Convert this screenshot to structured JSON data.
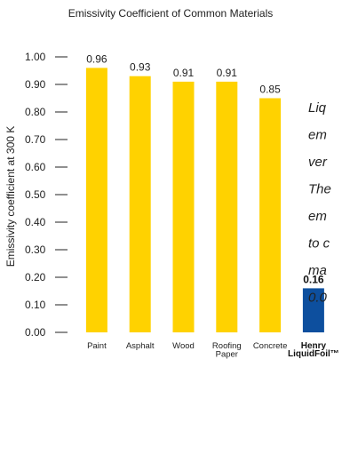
{
  "chart_data": {
    "type": "bar",
    "title": "Emissivity Coefficient of Common Materials",
    "ylabel": "Emissivity coefficient at 300 K",
    "xlabel": "",
    "ylim": [
      0,
      1.0
    ],
    "yticks": [
      "0.00",
      "0.10",
      "0.20",
      "0.30",
      "0.40",
      "0.50",
      "0.60",
      "0.70",
      "0.80",
      "0.90",
      "1.00"
    ],
    "categories": [
      [
        "Paint"
      ],
      [
        "Asphalt"
      ],
      [
        "Wood"
      ],
      [
        "Roofing",
        "Paper"
      ],
      [
        "Concrete"
      ],
      [
        "Henry",
        "LiquidFoil™"
      ]
    ],
    "values": [
      0.96,
      0.93,
      0.91,
      0.91,
      0.85,
      0.16
    ],
    "value_labels": [
      "0.96",
      "0.93",
      "0.91",
      "0.91",
      "0.85",
      "0.16"
    ],
    "highlight_index": 5,
    "colors": {
      "bar": "#FFD200",
      "highlight": "#0D4F9E",
      "axis": "#222222"
    },
    "grid": false,
    "annotation_lines": [
      "Liq",
      "em",
      "ver",
      "The",
      "em",
      "to c",
      "ma",
      "0.0"
    ]
  }
}
